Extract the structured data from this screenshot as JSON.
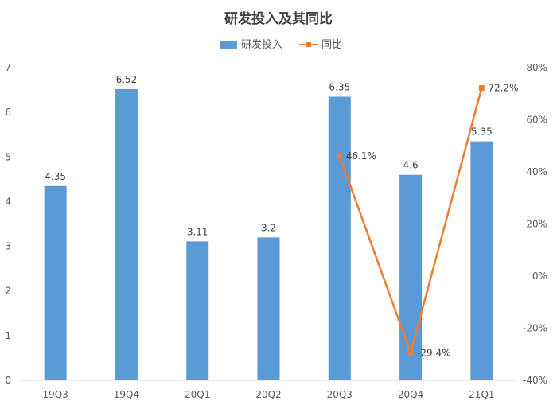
{
  "chart_data": {
    "type": "bar",
    "title": "研发投入及其同比",
    "categories": [
      "19Q3",
      "19Q4",
      "20Q1",
      "20Q2",
      "20Q3",
      "20Q4",
      "21Q1"
    ],
    "series": [
      {
        "name": "研发投入",
        "kind": "bar",
        "axis": "left",
        "values": [
          4.35,
          6.52,
          3.11,
          3.2,
          6.35,
          4.6,
          5.35
        ],
        "labels": [
          "4.35",
          "6.52",
          "3.11",
          "3.2",
          "6.35",
          "4.6",
          "5.35"
        ],
        "color": "#5B9BD5"
      },
      {
        "name": "同比",
        "kind": "line",
        "axis": "right",
        "values": [
          null,
          null,
          null,
          null,
          46.1,
          -29.4,
          72.2
        ],
        "labels": [
          "",
          "",
          "",
          "",
          "46.1%",
          "-29.4%",
          "72.2%"
        ],
        "color": "#ED7D31"
      }
    ],
    "y_left": {
      "min": 0,
      "max": 7,
      "ticks": [
        "0",
        "1",
        "2",
        "3",
        "4",
        "5",
        "6",
        "7"
      ]
    },
    "y_right": {
      "min": -40,
      "max": 80,
      "ticks": [
        "-40%",
        "-20%",
        "0%",
        "20%",
        "40%",
        "60%",
        "80%"
      ]
    },
    "legend_position": "top",
    "grid": false
  }
}
